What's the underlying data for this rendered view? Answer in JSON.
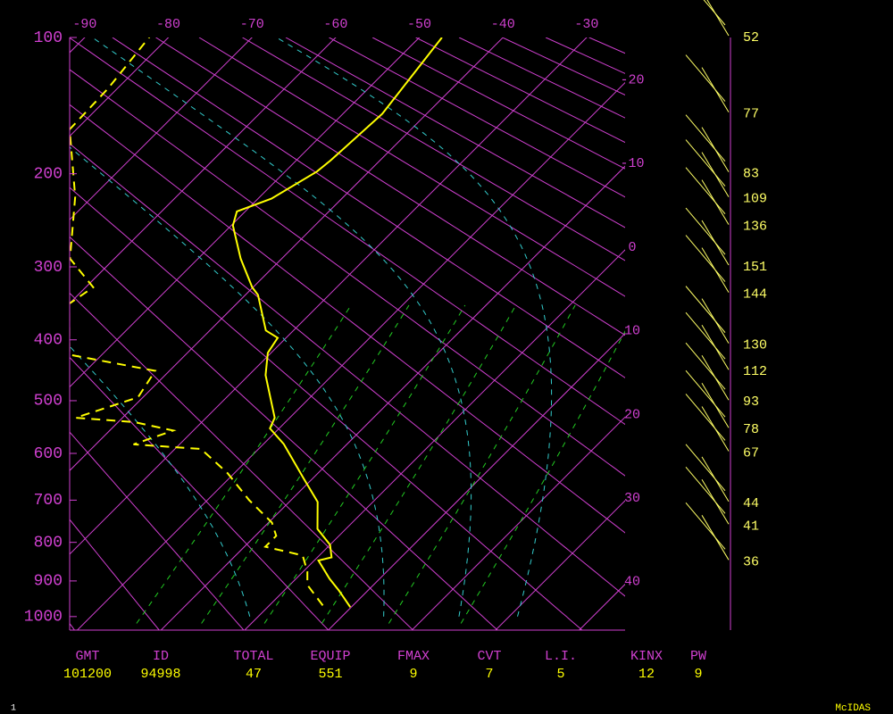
{
  "chart_data": {
    "type": "skewt",
    "ylim": [
      1040,
      100
    ],
    "yticks": [
      100,
      200,
      300,
      400,
      500,
      600,
      700,
      800,
      900,
      1000
    ],
    "xlim": [
      -91.8,
      -25.4
    ],
    "xticks": [
      -90,
      -80,
      -70,
      -60,
      -50,
      -40,
      -30
    ],
    "isotherm_labels": [
      -20,
      -10,
      0,
      10,
      20,
      30,
      40
    ],
    "axis_color": "#d040d0",
    "temperature": {
      "color": "#ffff00",
      "pressure": [
        973,
        927,
        894,
        846,
        838,
        806,
        767,
        704,
        651,
        581,
        551,
        531,
        456,
        420,
        397,
        386,
        336,
        326,
        290,
        252,
        237,
        224,
        198,
        188,
        150,
        100
      ],
      "values": [
        9.9,
        6.6,
        4.0,
        0.5,
        1.7,
        0.0,
        -3.4,
        -6.6,
        -11.2,
        -17.6,
        -21.1,
        -21.8,
        -28.0,
        -30.4,
        -31.0,
        -33.3,
        -38.5,
        -40.1,
        -44.9,
        -49.8,
        -51.0,
        -48.4,
        -46.2,
        -45.9,
        -45.3,
        -47.3
      ]
    },
    "dewpoint": {
      "color": "#ffff00",
      "dashed": true,
      "pressure": [
        968,
        911,
        875,
        833,
        811,
        784,
        752,
        700,
        641,
        591,
        582,
        555,
        539,
        531,
        494,
        449,
        423,
        348,
        326,
        290,
        222,
        162,
        132,
        98
      ],
      "values": [
        6.4,
        2.1,
        0.5,
        -2.0,
        -7.5,
        -7.5,
        -9.6,
        -15.0,
        -20.8,
        -26.9,
        -35.5,
        -32.4,
        -38.1,
        -45.6,
        -40.6,
        -41.7,
        -53.9,
        -60.0,
        -59.1,
        -65.3,
        -72.1,
        -80.8,
        -81.1,
        -82.4
      ]
    },
    "winds": {
      "color": "#ffff66",
      "pressure": [
        100,
        150,
        200,
        224,
        253,
        300,
        335,
        408,
        450,
        502,
        553,
        599,
        707,
        760,
        849
      ],
      "values": [
        52,
        77,
        83,
        109,
        136,
        151,
        144,
        130,
        112,
        93,
        78,
        67,
        44,
        41,
        36
      ]
    },
    "indices": {
      "labels": [
        "GMT",
        "ID",
        "TOTAL",
        "EQUIP",
        "FMAX",
        "CVT",
        "L.I.",
        "KINX",
        "PW"
      ],
      "values": [
        101200,
        94998,
        47,
        551,
        9,
        7,
        5,
        12,
        9
      ]
    },
    "footer": {
      "page": 1,
      "source": "McIDAS"
    }
  }
}
